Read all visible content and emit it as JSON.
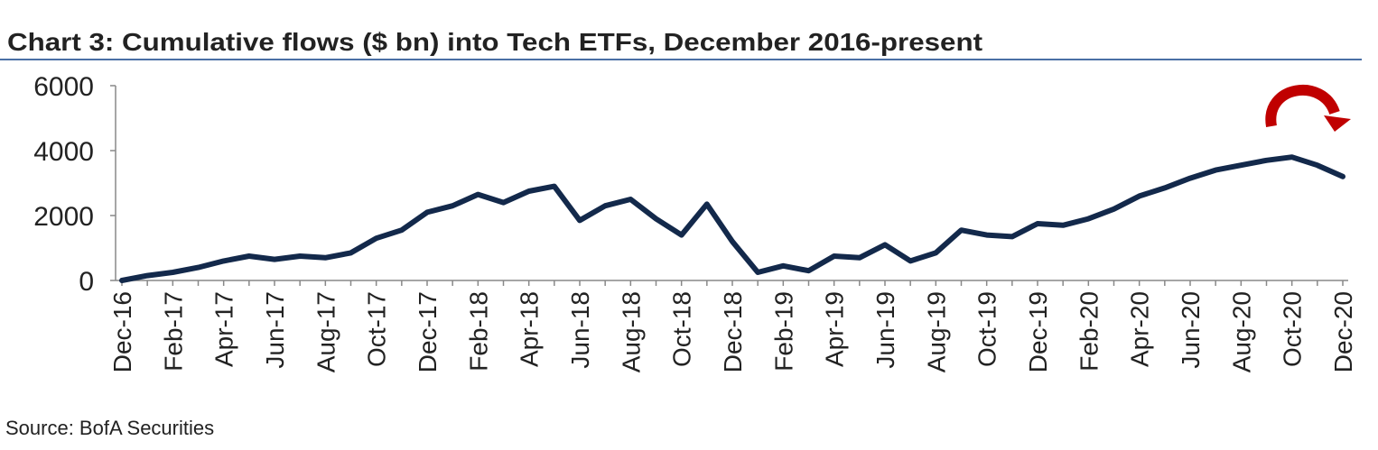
{
  "chart_data": {
    "type": "line",
    "title": "Chart 3: Cumulative flows ($ bn) into Tech ETFs, December 2016-present",
    "source": "Source: BofA Securities",
    "categories": [
      "Dec-16",
      null,
      "Feb-17",
      null,
      "Apr-17",
      null,
      "Jun-17",
      null,
      "Aug-17",
      null,
      "Oct-17",
      null,
      "Dec-17",
      null,
      "Feb-18",
      null,
      "Apr-18",
      null,
      "Jun-18",
      null,
      "Aug-18",
      null,
      "Oct-18",
      null,
      "Dec-18",
      null,
      "Feb-19",
      null,
      "Apr-19",
      null,
      "Jun-19",
      null,
      "Aug-19",
      null,
      "Oct-19",
      null,
      "Dec-19",
      null,
      "Feb-20",
      null,
      "Apr-20",
      null,
      "Jun-20",
      null,
      "Aug-20",
      null,
      "Oct-20",
      null,
      "Dec-20"
    ],
    "series": [
      {
        "name": "Cumulative flows",
        "color": "#13294b",
        "values": [
          0,
          150,
          250,
          400,
          600,
          750,
          650,
          750,
          700,
          850,
          1300,
          1550,
          2100,
          2300,
          2650,
          2400,
          2750,
          2900,
          1850,
          2300,
          2500,
          1900,
          1400,
          2350,
          1200,
          250,
          450,
          300,
          750,
          700,
          1100,
          600,
          850,
          1550,
          1400,
          1350,
          1750,
          1700,
          1900,
          2200,
          2600,
          2850,
          3150,
          3400,
          3550,
          3700,
          3800,
          3550,
          3200
        ]
      }
    ],
    "ylim": [
      0,
      6000
    ],
    "yticks": [
      0,
      2000,
      4000,
      6000
    ],
    "grid": false
  }
}
